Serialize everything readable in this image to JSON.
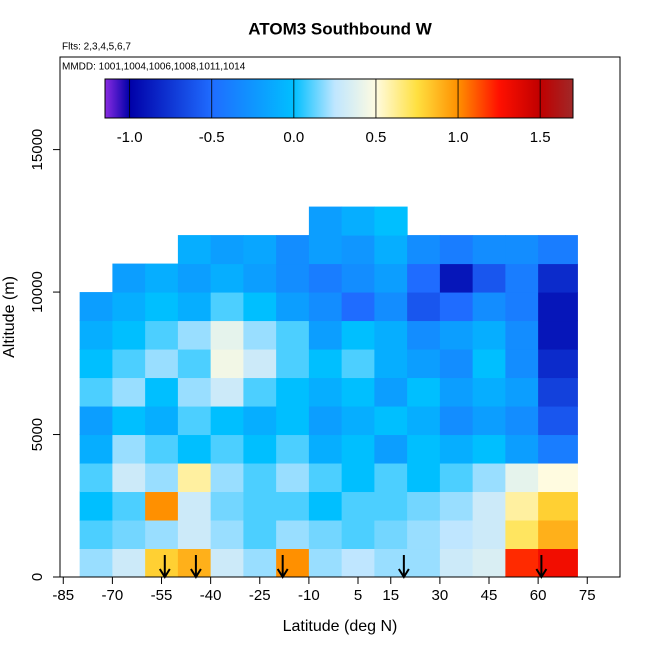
{
  "chart_data": {
    "type": "heatmap",
    "title": "ATOM3 Southbound W",
    "subtitle": "Flts: 2,3,4,5,6,7",
    "annotation": "MMDD: 1001,1004,1006,1008,1011,1014",
    "xlabel": "Latitude (deg N)",
    "ylabel": "Altitude (m)",
    "xlim": [
      -86,
      85
    ],
    "xticks": [
      -85,
      -70,
      -55,
      -40,
      -25,
      -10,
      5,
      15,
      30,
      45,
      60,
      75
    ],
    "ylim": [
      0,
      18250
    ],
    "yticks": [
      0,
      5000,
      10000,
      15000
    ],
    "x_edges": [
      -80,
      -70,
      -60,
      -50,
      -40,
      -30,
      -20,
      -10,
      0,
      10,
      20,
      30,
      40,
      50,
      60,
      72
    ],
    "y_edges": [
      0,
      1000,
      2000,
      3000,
      4000,
      5000,
      6000,
      7000,
      8000,
      9000,
      10000,
      11000,
      12000,
      13000
    ],
    "z": [
      [
        0.2,
        0.3,
        0.8,
        0.9,
        0.3,
        0.2,
        1.0,
        0.2,
        0.25,
        0.2,
        0.2,
        0.3,
        0.35,
        1.2,
        1.3
      ],
      [
        0.1,
        0.15,
        0.2,
        0.3,
        0.2,
        0.1,
        0.2,
        0.15,
        0.1,
        0.15,
        0.2,
        0.25,
        0.3,
        0.7,
        0.9
      ],
      [
        0.0,
        0.1,
        1.0,
        0.3,
        0.15,
        0.1,
        0.1,
        0.0,
        0.1,
        0.1,
        0.15,
        0.2,
        0.3,
        0.6,
        0.8
      ],
      [
        0.1,
        0.3,
        0.2,
        0.6,
        0.2,
        0.1,
        0.2,
        0.1,
        0.0,
        0.1,
        0.0,
        0.1,
        0.2,
        0.4,
        0.5
      ],
      [
        -0.1,
        0.2,
        0.1,
        0.0,
        0.1,
        0.0,
        0.1,
        -0.1,
        0.0,
        -0.2,
        0.0,
        -0.1,
        0.0,
        -0.2,
        -0.4
      ],
      [
        -0.2,
        0.0,
        -0.1,
        0.1,
        0.0,
        -0.1,
        0.0,
        -0.2,
        -0.1,
        0.0,
        -0.1,
        -0.3,
        -0.2,
        -0.3,
        -0.6
      ],
      [
        0.1,
        0.2,
        0.0,
        0.2,
        0.3,
        0.1,
        0.0,
        -0.1,
        0.0,
        -0.2,
        0.0,
        -0.2,
        -0.1,
        -0.2,
        -0.7
      ],
      [
        0.0,
        0.1,
        0.2,
        0.1,
        0.45,
        0.3,
        0.1,
        0.0,
        0.1,
        -0.1,
        -0.2,
        -0.3,
        0.0,
        -0.3,
        -0.8
      ],
      [
        -0.1,
        0.0,
        0.1,
        0.2,
        0.4,
        0.2,
        0.1,
        -0.2,
        0.0,
        -0.1,
        -0.3,
        -0.2,
        -0.1,
        -0.3,
        -0.9
      ],
      [
        -0.2,
        -0.1,
        0.0,
        -0.1,
        0.1,
        0.0,
        -0.2,
        -0.3,
        -0.5,
        -0.3,
        -0.6,
        -0.5,
        -0.3,
        -0.4,
        -0.9
      ],
      [
        null,
        -0.2,
        -0.1,
        -0.2,
        -0.1,
        -0.2,
        -0.3,
        -0.4,
        -0.3,
        -0.2,
        -0.5,
        -0.9,
        -0.6,
        -0.4,
        -0.8
      ],
      [
        null,
        null,
        null,
        -0.1,
        -0.2,
        -0.15,
        -0.3,
        -0.2,
        -0.25,
        -0.1,
        -0.3,
        -0.4,
        -0.3,
        -0.3,
        -0.4
      ],
      [
        null,
        null,
        null,
        null,
        null,
        null,
        null,
        -0.2,
        -0.1,
        0.0,
        null,
        null,
        null,
        null,
        null
      ]
    ],
    "colorbar": {
      "lim": [
        -1.15,
        1.7
      ],
      "ticks": [
        {
          "value": -1,
          "label": "-1.0"
        },
        -0.5,
        {
          "value": 0,
          "label": "0.0"
        },
        0.5,
        {
          "value": 1,
          "label": "1.0"
        },
        1.5
      ],
      "colorscale": [
        [
          -1.15,
          "#8a2be2"
        ],
        [
          -1.0,
          "#0000a8"
        ],
        [
          -0.5,
          "#1f6cff"
        ],
        [
          0.0,
          "#00bfff"
        ],
        [
          0.25,
          "#bfe6ff"
        ],
        [
          0.5,
          "#fffbe0"
        ],
        [
          0.75,
          "#ffe040"
        ],
        [
          1.0,
          "#ff9000"
        ],
        [
          1.25,
          "#ff1000"
        ],
        [
          1.5,
          "#c00000"
        ],
        [
          1.7,
          "#a02828"
        ]
      ]
    },
    "arrows": [
      -54,
      -44.5,
      -18,
      19,
      61
    ]
  }
}
